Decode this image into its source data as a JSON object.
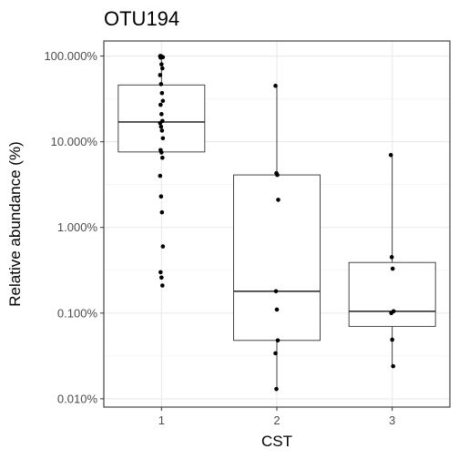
{
  "chart_data": {
    "type": "box",
    "title": "OTU194",
    "xlabel": "CST",
    "ylabel": "Relative abundance (%)",
    "y_scale": "log10",
    "ylim": [
      0.008,
      150
    ],
    "y_ticks": [
      {
        "value": 0.01,
        "label": "0.010%"
      },
      {
        "value": 0.1,
        "label": "0.100%"
      },
      {
        "value": 1,
        "label": "1.000%"
      },
      {
        "value": 10,
        "label": "10.000%"
      },
      {
        "value": 100,
        "label": "100.000%"
      }
    ],
    "categories": [
      "1",
      "2",
      "3"
    ],
    "boxes": [
      {
        "category": "1",
        "q1": 7.6,
        "median": 17.0,
        "q3": 46.0,
        "whisker_low": 7.6,
        "whisker_high": 100.0
      },
      {
        "category": "2",
        "q1": 0.048,
        "median": 0.18,
        "q3": 4.1,
        "whisker_low": 0.013,
        "whisker_high": 45.0
      },
      {
        "category": "3",
        "q1": 0.07,
        "median": 0.105,
        "q3": 0.39,
        "whisker_low": 0.024,
        "whisker_high": 7.0
      }
    ],
    "points": [
      {
        "category": "1",
        "values": [
          100,
          100,
          98,
          97,
          96,
          80,
          72,
          60,
          47,
          37,
          30,
          27,
          21,
          17.5,
          16.5,
          15,
          13.5,
          11,
          8,
          7.5,
          6.5,
          4,
          2.3,
          1.5,
          0.6,
          0.3,
          0.26,
          0.21
        ]
      },
      {
        "category": "2",
        "values": [
          45,
          4.3,
          4.1,
          2.1,
          0.18,
          0.11,
          0.048,
          0.034,
          0.013
        ]
      },
      {
        "category": "3",
        "values": [
          7.0,
          0.45,
          0.33,
          0.105,
          0.1,
          0.049,
          0.024
        ]
      }
    ],
    "grid": true
  }
}
